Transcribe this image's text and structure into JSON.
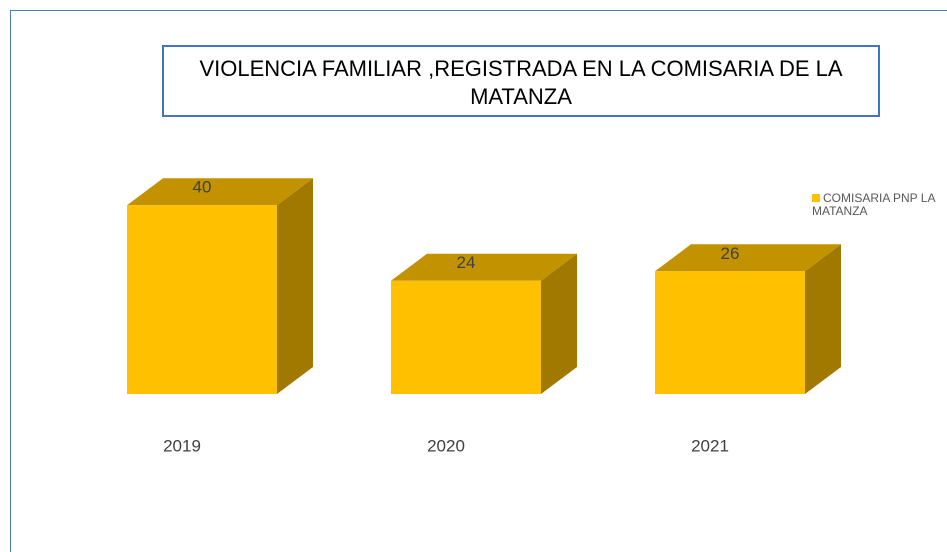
{
  "chart_data": {
    "type": "bar3d",
    "title": "VIOLENCIA FAMILIAR ,REGISTRADA EN LA COMISARIA DE LA MATANZA",
    "categories": [
      "2019",
      "2020",
      "2021"
    ],
    "series": [
      {
        "name": "COMISARIA PNP LA MATANZA",
        "color": "#ffc000",
        "values": [
          40,
          24,
          26
        ]
      }
    ]
  }
}
